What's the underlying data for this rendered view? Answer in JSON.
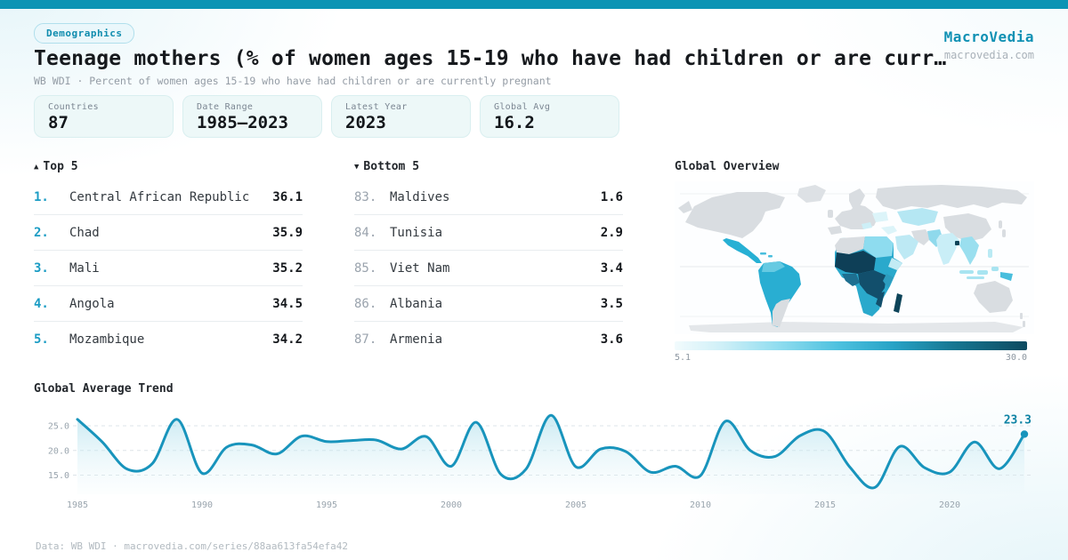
{
  "badge": {
    "label": "Demographics"
  },
  "brand": {
    "name": "MacroVedia",
    "domain": "macrovedia.com"
  },
  "header": {
    "title": "Teenage mothers (% of women ages 15-19 who have had children or are curr…",
    "subtitle": "WB WDI · Percent of women ages 15-19 who have had children or are currently pregnant"
  },
  "stats": [
    {
      "label": "Countries",
      "value": "87"
    },
    {
      "label": "Date Range",
      "value": "1985—2023"
    },
    {
      "label": "Latest Year",
      "value": "2023"
    },
    {
      "label": "Global Avg",
      "value": "16.2"
    }
  ],
  "top_list": {
    "arrow": "▲",
    "title": "Top 5",
    "rows": [
      {
        "rank": "1.",
        "name": "Central African Republic",
        "value": "36.1"
      },
      {
        "rank": "2.",
        "name": "Chad",
        "value": "35.9"
      },
      {
        "rank": "3.",
        "name": "Mali",
        "value": "35.2"
      },
      {
        "rank": "4.",
        "name": "Angola",
        "value": "34.5"
      },
      {
        "rank": "5.",
        "name": "Mozambique",
        "value": "34.2"
      }
    ]
  },
  "bottom_list": {
    "arrow": "▼",
    "title": "Bottom 5",
    "rows": [
      {
        "rank": "83.",
        "name": "Maldives",
        "value": "1.6"
      },
      {
        "rank": "84.",
        "name": "Tunisia",
        "value": "2.9"
      },
      {
        "rank": "85.",
        "name": "Viet Nam",
        "value": "3.4"
      },
      {
        "rank": "86.",
        "name": "Albania",
        "value": "3.5"
      },
      {
        "rank": "87.",
        "name": "Armenia",
        "value": "3.6"
      }
    ]
  },
  "map": {
    "title": "Global Overview",
    "legend_min": "5.1",
    "legend_max": "30.0",
    "scale_low_color": "#f2fbfd",
    "scale_high_color": "#0d4a60",
    "no_data_color": "#d9dde1"
  },
  "trend": {
    "title": "Global Average Trend",
    "end_label": "23.3"
  },
  "footer": {
    "text": "Data: WB WDI · macrovedia.com/series/88aa613fa54efa42"
  },
  "chart_data": [
    {
      "type": "heatmap",
      "subtype": "world-choropleth",
      "title": "Global Overview",
      "scale_min": 5.1,
      "scale_max": 30.0,
      "legend": "continuous color scale, light cyan (low) to dark teal (high)",
      "notes": "Sub-Saharan Africa darkest (highest rates); Latin America medium teal; North Africa, Middle East, Central & South Asia light cyan; North America, Europe, Russia, China, Australia gray (no data)"
    },
    {
      "type": "line",
      "title": "Global Average Trend",
      "x_start": 1985,
      "x": [
        1985,
        1986,
        1987,
        1988,
        1989,
        1990,
        1991,
        1992,
        1993,
        1994,
        1995,
        1996,
        1997,
        1998,
        1999,
        2000,
        2001,
        2002,
        2003,
        2004,
        2005,
        2006,
        2007,
        2008,
        2009,
        2010,
        2011,
        2012,
        2013,
        2014,
        2015,
        2016,
        2017,
        2018,
        2019,
        2020,
        2021,
        2022,
        2023
      ],
      "values": [
        26.3,
        21.7,
        16.2,
        17.3,
        26.3,
        15.4,
        20.7,
        21.1,
        19.3,
        22.9,
        21.8,
        22.0,
        22.1,
        20.3,
        22.8,
        16.8,
        25.7,
        15.1,
        16.2,
        27.1,
        16.7,
        20.3,
        19.8,
        15.6,
        16.8,
        14.9,
        25.9,
        20.0,
        18.8,
        23.0,
        23.8,
        16.6,
        12.5,
        20.8,
        16.5,
        15.6,
        21.7,
        16.3,
        23.3
      ],
      "end_label": "23.3",
      "y_ticks": [
        25.0,
        20.0,
        15.0
      ],
      "x_ticks": [
        1985,
        1990,
        1995,
        2000,
        2005,
        2010,
        2015,
        2020
      ],
      "ylim": [
        11,
        29
      ],
      "grid": "dashed-horizontal",
      "line_color": "#1894bc",
      "legend_position": "none"
    }
  ]
}
